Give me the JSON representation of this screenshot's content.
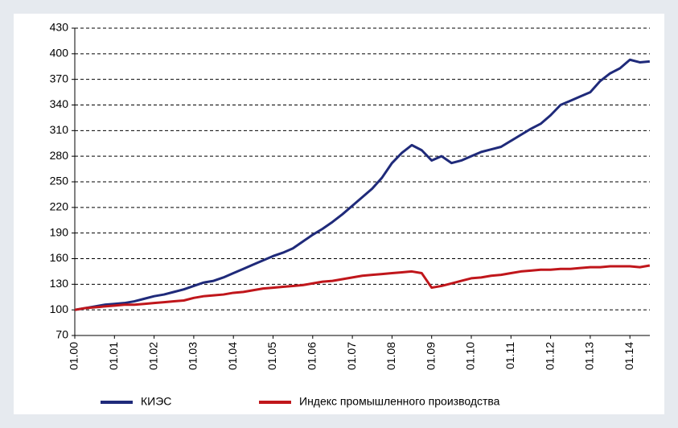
{
  "chart_data": {
    "type": "line",
    "categories": [
      "01.00",
      null,
      null,
      null,
      "01.01",
      null,
      null,
      null,
      "01.02",
      null,
      null,
      null,
      "01.03",
      null,
      null,
      null,
      "01.04",
      null,
      null,
      null,
      "01.05",
      null,
      null,
      null,
      "01.06",
      null,
      null,
      null,
      "01.07",
      null,
      null,
      null,
      "01.08",
      null,
      null,
      null,
      "01.09",
      null,
      null,
      null,
      "01.10",
      null,
      null,
      null,
      "01.11",
      null,
      null,
      null,
      "01.12",
      null,
      null,
      null,
      "01.13",
      null,
      null,
      null,
      "01.14",
      null,
      null
    ],
    "series": [
      {
        "name": "КИЭС",
        "color": "#1f2a7a",
        "values": [
          100,
          102,
          104,
          106,
          107,
          108,
          110,
          113,
          116,
          118,
          121,
          124,
          128,
          132,
          134,
          138,
          143,
          148,
          153,
          158,
          163,
          167,
          172,
          180,
          188,
          195,
          203,
          212,
          222,
          232,
          242,
          255,
          272,
          284,
          293,
          287,
          275,
          280,
          272,
          275,
          280,
          285,
          288,
          291,
          298,
          305,
          312,
          318,
          328,
          340,
          345,
          350,
          355,
          368,
          377,
          383,
          393,
          390,
          391
        ]
      },
      {
        "name": "Индекс промышленного производства",
        "color": "#c0161b",
        "values": [
          100,
          102,
          103,
          104,
          105,
          106,
          106,
          107,
          108,
          109,
          110,
          111,
          114,
          116,
          117,
          118,
          120,
          121,
          123,
          125,
          126,
          127,
          128,
          129,
          131,
          133,
          134,
          136,
          138,
          140,
          141,
          142,
          143,
          144,
          145,
          143,
          126,
          128,
          131,
          134,
          137,
          138,
          140,
          141,
          143,
          145,
          146,
          147,
          147,
          148,
          148,
          149,
          150,
          150,
          151,
          151,
          151,
          150,
          152
        ]
      }
    ],
    "ylim": [
      70,
      430
    ],
    "yticks": [
      70,
      100,
      130,
      160,
      190,
      220,
      250,
      280,
      310,
      340,
      370,
      400,
      430
    ],
    "grid": true,
    "legend": "bottom"
  }
}
